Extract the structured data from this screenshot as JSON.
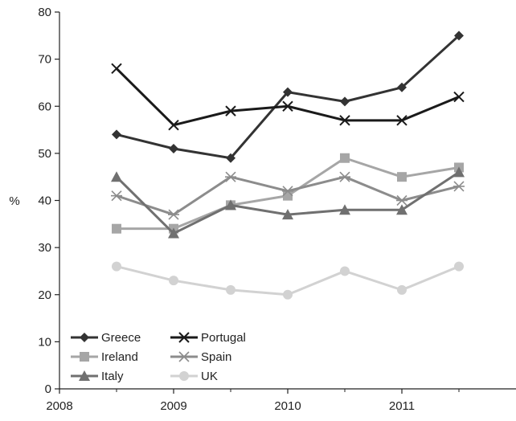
{
  "chart_data": {
    "type": "line",
    "title": "",
    "xlabel": "",
    "ylabel": "%",
    "ylim": [
      0,
      80
    ],
    "xlim": [
      2008,
      2012
    ],
    "x_ticks": [
      "2008",
      "2009",
      "2010",
      "2011"
    ],
    "y_ticks": [
      "0",
      "10",
      "20",
      "30",
      "40",
      "50",
      "60",
      "70",
      "80"
    ],
    "x": [
      2008.5,
      2009,
      2009.5,
      2010,
      2010.5,
      2011,
      2011.5
    ],
    "grid": false,
    "legend_position": "bottom-left",
    "series": [
      {
        "name": "Greece",
        "values": [
          54,
          51,
          49,
          63,
          61,
          64,
          75
        ],
        "marker": "diamond",
        "color": "#333333"
      },
      {
        "name": "Portugal",
        "values": [
          68,
          56,
          59,
          60,
          57,
          57,
          62
        ],
        "marker": "x",
        "color": "#1a1a1a"
      },
      {
        "name": "Ireland",
        "values": [
          34,
          34,
          39,
          41,
          49,
          45,
          47
        ],
        "marker": "square",
        "color": "#a6a6a6"
      },
      {
        "name": "Spain",
        "values": [
          41,
          37,
          45,
          42,
          45,
          40,
          43
        ],
        "marker": "asterisk",
        "color": "#8c8c8c"
      },
      {
        "name": "Italy",
        "values": [
          45,
          33,
          39,
          37,
          38,
          38,
          46
        ],
        "marker": "triangle",
        "color": "#707070"
      },
      {
        "name": "UK",
        "values": [
          26,
          23,
          21,
          20,
          25,
          21,
          26
        ],
        "marker": "circle",
        "color": "#d2d2d2"
      }
    ]
  }
}
